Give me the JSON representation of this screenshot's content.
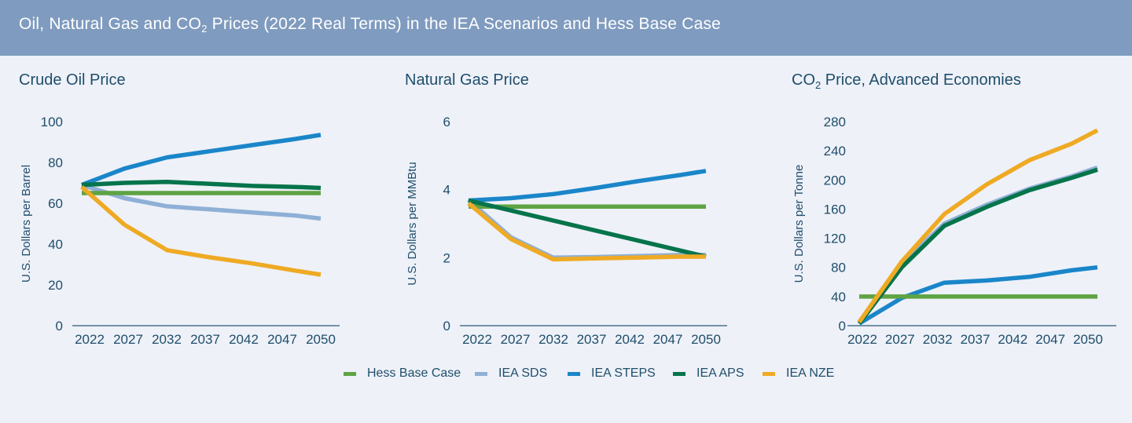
{
  "header": {
    "title_pre": "Oil, Natural Gas and CO",
    "title_sub": "2",
    "title_post": " Prices (2022 Real Terms) in the IEA Scenarios and Hess Base Case"
  },
  "colors": {
    "Hess Base Case": "#5ea344",
    "IEA SDS": "#8fb0d6",
    "IEA STEPS": "#1a86c9",
    "IEA APS": "#06744b",
    "IEA NZE": "#efaa24",
    "text": "#1f4e6b",
    "axis": "#2c5a78"
  },
  "legend": [
    "Hess Base Case",
    "IEA SDS",
    "IEA STEPS",
    "IEA APS",
    "IEA NZE"
  ],
  "chart_data": [
    {
      "type": "line",
      "title": "Crude Oil Price",
      "title_sub": "",
      "title_post": "",
      "ylabel": "U.S. Dollars per Barrel",
      "xlabel": "",
      "x": [
        2022,
        2027,
        2032,
        2037,
        2042,
        2047,
        2050
      ],
      "xticks": [
        "2022",
        "2027",
        "2032",
        "2037",
        "2042",
        "2047",
        "2050"
      ],
      "ylim": [
        0,
        100
      ],
      "yticks": [
        0,
        20,
        40,
        60,
        80,
        100
      ],
      "series": [
        {
          "name": "Hess Base Case",
          "points": [
            [
              2022,
              65
            ],
            [
              2050,
              65
            ]
          ]
        },
        {
          "name": "IEA SDS",
          "points": [
            [
              2022,
              69
            ],
            [
              2027,
              62.5
            ],
            [
              2032,
              58.5
            ],
            [
              2037,
              57
            ],
            [
              2042,
              55.5
            ],
            [
              2047,
              54
            ],
            [
              2050,
              52.5
            ]
          ]
        },
        {
          "name": "IEA STEPS",
          "points": [
            [
              2022,
              69
            ],
            [
              2027,
              77
            ],
            [
              2032,
              82.5
            ],
            [
              2037,
              85.5
            ],
            [
              2042,
              88.5
            ],
            [
              2047,
              91.5
            ],
            [
              2050,
              93.5
            ]
          ]
        },
        {
          "name": "IEA APS",
          "points": [
            [
              2022,
              69
            ],
            [
              2027,
              70
            ],
            [
              2032,
              70.5
            ],
            [
              2037,
              69.5
            ],
            [
              2042,
              68.5
            ],
            [
              2047,
              68
            ],
            [
              2050,
              67.5
            ]
          ]
        },
        {
          "name": "IEA NZE",
          "points": [
            [
              2022,
              68
            ],
            [
              2027,
              49.5
            ],
            [
              2032,
              37
            ],
            [
              2037,
              33.5
            ],
            [
              2042,
              30.5
            ],
            [
              2047,
              27
            ],
            [
              2050,
              25
            ]
          ]
        }
      ]
    },
    {
      "type": "line",
      "title": "Natural Gas Price",
      "title_sub": "",
      "title_post": "",
      "ylabel": "U.S. Dollars per MMBtu",
      "xlabel": "",
      "x": [
        2022,
        2027,
        2032,
        2037,
        2042,
        2047,
        2050
      ],
      "xticks": [
        "2022",
        "2027",
        "2032",
        "2037",
        "2042",
        "2047",
        "2050"
      ],
      "ylim": [
        0,
        6
      ],
      "yticks": [
        0,
        2,
        4,
        6
      ],
      "series": [
        {
          "name": "Hess Base Case",
          "points": [
            [
              2022,
              3.5
            ],
            [
              2050,
              3.5
            ]
          ]
        },
        {
          "name": "IEA SDS",
          "points": [
            [
              2022,
              3.7
            ],
            [
              2027,
              2.6
            ],
            [
              2032,
              2.0
            ],
            [
              2037,
              2.02
            ],
            [
              2042,
              2.05
            ],
            [
              2047,
              2.08
            ],
            [
              2050,
              2.08
            ]
          ]
        },
        {
          "name": "IEA STEPS",
          "points": [
            [
              2022,
              3.68
            ],
            [
              2027,
              3.75
            ],
            [
              2032,
              3.87
            ],
            [
              2037,
              4.05
            ],
            [
              2042,
              4.25
            ],
            [
              2047,
              4.43
            ],
            [
              2050,
              4.55
            ]
          ]
        },
        {
          "name": "IEA APS",
          "points": [
            [
              2022,
              3.68
            ],
            [
              2050,
              2.03
            ]
          ]
        },
        {
          "name": "IEA NZE",
          "points": [
            [
              2022,
              3.6
            ],
            [
              2027,
              2.55
            ],
            [
              2032,
              1.95
            ],
            [
              2037,
              1.98
            ],
            [
              2042,
              2.0
            ],
            [
              2047,
              2.03
            ],
            [
              2050,
              2.03
            ]
          ]
        }
      ]
    },
    {
      "type": "line",
      "title": "CO",
      "title_sub": "2",
      "title_post": " Price, Advanced Economies",
      "ylabel": "U.S. Dollars per Tonne",
      "xlabel": "",
      "x": [
        2022,
        2027,
        2032,
        2037,
        2042,
        2047,
        2050
      ],
      "xticks": [
        "2022",
        "2027",
        "2032",
        "2037",
        "2042",
        "2047",
        "2050"
      ],
      "ylim": [
        0,
        280
      ],
      "yticks": [
        0,
        40,
        80,
        120,
        160,
        200,
        240,
        280
      ],
      "series": [
        {
          "name": "Hess Base Case",
          "points": [
            [
              2022,
              40
            ],
            [
              2050,
              40
            ]
          ]
        },
        {
          "name": "IEA SDS",
          "points": [
            [
              2022,
              5
            ],
            [
              2027,
              85
            ],
            [
              2032,
              140
            ],
            [
              2037,
              166
            ],
            [
              2042,
              188
            ],
            [
              2047,
              205
            ],
            [
              2050,
              217
            ]
          ]
        },
        {
          "name": "IEA STEPS",
          "points": [
            [
              2022,
              3
            ],
            [
              2027,
              38
            ],
            [
              2032,
              59
            ],
            [
              2037,
              62
            ],
            [
              2042,
              67
            ],
            [
              2047,
              76
            ],
            [
              2050,
              80
            ]
          ]
        },
        {
          "name": "IEA APS",
          "points": [
            [
              2022,
              3
            ],
            [
              2027,
              80
            ],
            [
              2032,
              137
            ],
            [
              2037,
              163
            ],
            [
              2042,
              186
            ],
            [
              2047,
              203
            ],
            [
              2050,
              214
            ]
          ]
        },
        {
          "name": "IEA NZE",
          "points": [
            [
              2022,
              5
            ],
            [
              2027,
              88
            ],
            [
              2032,
              153
            ],
            [
              2037,
              194
            ],
            [
              2042,
              227
            ],
            [
              2047,
              250
            ],
            [
              2050,
              268
            ]
          ]
        }
      ]
    }
  ]
}
